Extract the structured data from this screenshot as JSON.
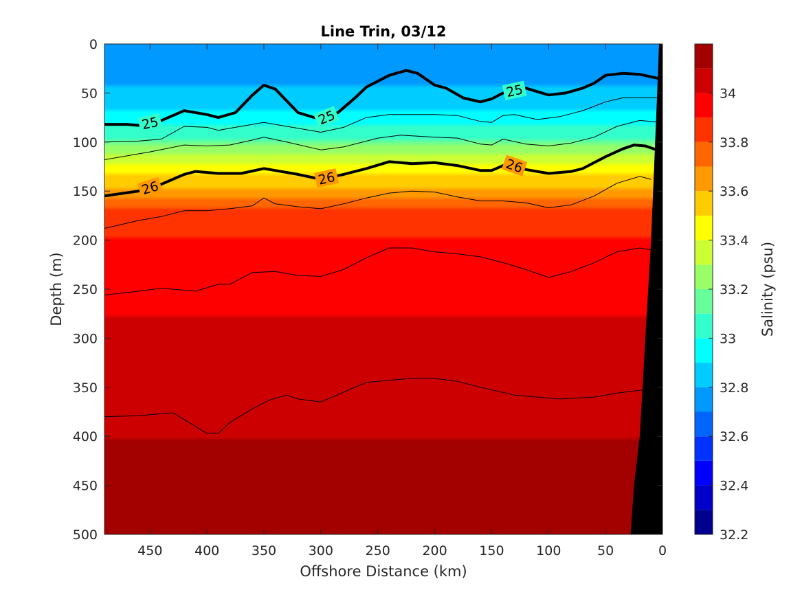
{
  "chart_data": {
    "type": "contourf",
    "title": "Line Trin, 03/12",
    "xlabel": "Offshore Distance (km)",
    "ylabel": "Depth (m)",
    "colorbar_label": "Salinity (psu)",
    "xlim": [
      490,
      0
    ],
    "ylim": [
      500,
      0
    ],
    "x_reversed": true,
    "y_reversed": true,
    "x_ticks": [
      450,
      400,
      350,
      300,
      250,
      200,
      150,
      100,
      50,
      0
    ],
    "y_ticks": [
      0,
      50,
      100,
      150,
      200,
      250,
      300,
      350,
      400,
      450,
      500
    ],
    "colorbar_ticks": [
      32.2,
      32.4,
      32.6,
      32.8,
      33,
      33.2,
      33.4,
      33.6,
      33.8,
      34
    ],
    "colorbar_levels": [
      32.2,
      32.3,
      32.4,
      32.5,
      32.6,
      32.7,
      32.8,
      32.9,
      33.0,
      33.1,
      33.2,
      33.3,
      33.4,
      33.5,
      33.6,
      33.7,
      33.8,
      33.9,
      34.0,
      34.1,
      34.2
    ],
    "colorbar_colors": [
      "#00008f",
      "#0000c8",
      "#0000ff",
      "#0033ff",
      "#0066ff",
      "#0099ff",
      "#00ccff",
      "#00ffff",
      "#33ffcc",
      "#66ff99",
      "#99ff66",
      "#ccff33",
      "#ffff00",
      "#ffcc00",
      "#ff9900",
      "#ff6600",
      "#ff3300",
      "#ff0000",
      "#cc0000",
      "#a30000"
    ],
    "salinity_profile": {
      "depth": [
        0,
        30,
        60,
        80,
        90,
        100,
        110,
        120,
        130,
        140,
        150,
        170,
        200,
        240,
        300,
        370,
        450,
        500
      ],
      "salinity": [
        32.72,
        32.75,
        32.85,
        32.95,
        33.05,
        33.15,
        33.25,
        33.35,
        33.45,
        33.55,
        33.65,
        33.8,
        33.9,
        33.97,
        34.02,
        34.08,
        34.13,
        34.17
      ]
    },
    "density_contours": [
      {
        "level": 25,
        "bold": true,
        "labels": [
          "25",
          "25",
          "25"
        ],
        "x": [
          490,
          470,
          460,
          440,
          420,
          400,
          390,
          375,
          360,
          350,
          340,
          320,
          300,
          285,
          270,
          260,
          240,
          225,
          215,
          200,
          190,
          175,
          160,
          150,
          140,
          120,
          100,
          85,
          70,
          60,
          50,
          35,
          20,
          0
        ],
        "depth": [
          82,
          82,
          83,
          78,
          68,
          72,
          75,
          70,
          52,
          42,
          46,
          70,
          77,
          70,
          55,
          44,
          32,
          27,
          30,
          42,
          45,
          55,
          59,
          56,
          50,
          45,
          52,
          50,
          45,
          40,
          32,
          30,
          31,
          36
        ]
      },
      {
        "level": 25.5,
        "bold": false,
        "labels": [],
        "x": [
          490,
          460,
          440,
          420,
          400,
          390,
          380,
          360,
          350,
          340,
          320,
          300,
          280,
          260,
          240,
          220,
          200,
          180,
          160,
          150,
          140,
          130,
          110,
          90,
          70,
          50,
          35,
          20,
          0
        ],
        "depth": [
          100,
          99,
          97,
          84,
          85,
          88,
          86,
          82,
          80,
          82,
          86,
          90,
          85,
          75,
          72,
          72,
          72,
          73,
          79,
          80,
          73,
          72,
          77,
          74,
          68,
          59,
          55,
          55,
          55
        ]
      },
      {
        "level": 25.8,
        "bold": false,
        "labels": [],
        "x": [
          490,
          450,
          420,
          400,
          380,
          360,
          350,
          330,
          300,
          280,
          250,
          230,
          200,
          180,
          160,
          150,
          140,
          120,
          100,
          80,
          60,
          40,
          20,
          0
        ],
        "depth": [
          118,
          110,
          103,
          104,
          103,
          98,
          95,
          100,
          108,
          105,
          96,
          93,
          95,
          96,
          102,
          103,
          97,
          102,
          104,
          101,
          95,
          84,
          78,
          80
        ]
      },
      {
        "level": 26,
        "bold": true,
        "labels": [
          "26",
          "26",
          "26"
        ],
        "x": [
          490,
          460,
          440,
          420,
          410,
          390,
          370,
          350,
          340,
          320,
          300,
          280,
          260,
          240,
          220,
          200,
          180,
          160,
          150,
          140,
          130,
          120,
          100,
          80,
          70,
          50,
          35,
          25,
          15,
          0
        ],
        "depth": [
          155,
          150,
          143,
          133,
          130,
          132,
          132,
          127,
          129,
          133,
          138,
          133,
          127,
          120,
          122,
          121,
          124,
          129,
          129,
          124,
          124,
          128,
          132,
          130,
          127,
          115,
          107,
          103,
          104,
          110
        ]
      },
      {
        "level": 26.3,
        "bold": false,
        "labels": [],
        "x": [
          490,
          460,
          440,
          420,
          400,
          380,
          360,
          350,
          340,
          320,
          300,
          280,
          260,
          240,
          220,
          200,
          180,
          160,
          140,
          120,
          100,
          80,
          60,
          40,
          20,
          10
        ],
        "depth": [
          188,
          180,
          176,
          170,
          170,
          168,
          165,
          157,
          163,
          166,
          168,
          163,
          157,
          152,
          150,
          151,
          156,
          160,
          160,
          162,
          167,
          164,
          155,
          142,
          135,
          138
        ]
      },
      {
        "level": 26.5,
        "bold": false,
        "labels": [],
        "x": [
          490,
          460,
          440,
          410,
          390,
          380,
          360,
          340,
          320,
          300,
          280,
          260,
          240,
          220,
          200,
          180,
          160,
          140,
          120,
          100,
          80,
          60,
          40,
          20,
          10
        ],
        "depth": [
          256,
          252,
          249,
          252,
          245,
          245,
          233,
          232,
          236,
          237,
          230,
          218,
          208,
          208,
          212,
          214,
          217,
          223,
          230,
          238,
          232,
          223,
          212,
          208,
          210
        ]
      },
      {
        "level": 26.7,
        "bold": false,
        "labels": [],
        "x": [
          490,
          460,
          430,
          420,
          400,
          390,
          380,
          360,
          345,
          330,
          320,
          300,
          280,
          260,
          240,
          220,
          200,
          180,
          160,
          130,
          110,
          90,
          60,
          40,
          20,
          10
        ],
        "depth": [
          380,
          379,
          376,
          383,
          397,
          397,
          386,
          372,
          363,
          358,
          362,
          365,
          355,
          345,
          343,
          341,
          341,
          344,
          350,
          358,
          360,
          362,
          360,
          356,
          353,
          353
        ]
      }
    ],
    "bathymetry": {
      "x": [
        3,
        5,
        10,
        15,
        20,
        25,
        28,
        32,
        25,
        0,
        0
      ],
      "depth": [
        0,
        60,
        200,
        300,
        400,
        450,
        500,
        500,
        500,
        500,
        0
      ]
    }
  }
}
